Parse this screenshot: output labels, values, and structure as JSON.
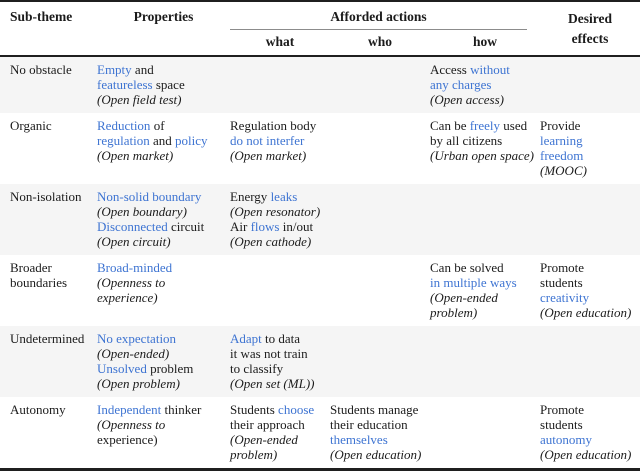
{
  "table": {
    "header": {
      "col_subtheme": "Sub-theme",
      "col_properties": "Properties",
      "group_afforded": "Afforded actions",
      "col_what": "what",
      "col_who": "who",
      "col_how": "how",
      "col_effects": "Desired effects"
    },
    "colors": {
      "link_blue": "#3E74D2",
      "row_alt_bg": "#F5F5F5",
      "rule_dark": "#1F1F1F",
      "rule_gray": "#8C8C8C"
    },
    "rows": [
      {
        "shaded": true,
        "subtheme": [
          [
            {
              "t": "No obstacle"
            }
          ]
        ],
        "properties": [
          [
            {
              "t": "Empty",
              "s": "blue"
            },
            {
              "t": " and"
            }
          ],
          [
            {
              "t": "featureless",
              "s": "blue"
            },
            {
              "t": " space"
            }
          ],
          [
            {
              "t": "(Open field test)",
              "s": "italic"
            }
          ]
        ],
        "what": [],
        "who": [],
        "how": [
          [
            {
              "t": "Access "
            },
            {
              "t": "without",
              "s": "blue"
            }
          ],
          [
            {
              "t": "any charges",
              "s": "blue"
            }
          ],
          [
            {
              "t": "(Open access)",
              "s": "italic"
            }
          ]
        ],
        "effects": []
      },
      {
        "shaded": false,
        "subtheme": [
          [
            {
              "t": "Organic"
            }
          ]
        ],
        "properties": [
          [
            {
              "t": "Reduction",
              "s": "blue"
            },
            {
              "t": " of"
            }
          ],
          [
            {
              "t": "regulation",
              "s": "blue"
            },
            {
              "t": " and "
            },
            {
              "t": "policy",
              "s": "blue"
            }
          ],
          [
            {
              "t": "(Open market)",
              "s": "italic"
            }
          ]
        ],
        "what": [
          [
            {
              "t": "Regulation body"
            }
          ],
          [
            {
              "t": "do not interfer",
              "s": "blue"
            }
          ],
          [
            {
              "t": "(Open market)",
              "s": "italic"
            }
          ]
        ],
        "who": [],
        "how": [
          [
            {
              "t": "Can be "
            },
            {
              "t": "freely",
              "s": "blue"
            },
            {
              "t": " used"
            }
          ],
          [
            {
              "t": "by all citizens"
            }
          ],
          [
            {
              "t": "(Urban open space)",
              "s": "italic"
            }
          ]
        ],
        "effects": [
          [
            {
              "t": "Provide"
            }
          ],
          [
            {
              "t": "learning",
              "s": "blue"
            }
          ],
          [
            {
              "t": "freedom",
              "s": "blue"
            }
          ],
          [
            {
              "t": "(MOOC)",
              "s": "italic"
            }
          ]
        ]
      },
      {
        "shaded": true,
        "subtheme": [
          [
            {
              "t": "Non-isolation"
            }
          ]
        ],
        "properties": [
          [
            {
              "t": "Non-solid boundary",
              "s": "blue"
            }
          ],
          [
            {
              "t": "(Open boundary)",
              "s": "italic"
            }
          ],
          [
            {
              "t": "Disconnected",
              "s": "blue"
            },
            {
              "t": " circuit"
            }
          ],
          [
            {
              "t": "(Open circuit)",
              "s": "italic"
            }
          ]
        ],
        "what": [
          [
            {
              "t": "Energy "
            },
            {
              "t": "leaks",
              "s": "blue"
            }
          ],
          [
            {
              "t": "(Open resonator)",
              "s": "italic"
            }
          ],
          [
            {
              "t": "Air "
            },
            {
              "t": "flows",
              "s": "blue"
            },
            {
              "t": " in/out"
            }
          ],
          [
            {
              "t": "(Open cathode)",
              "s": "italic"
            }
          ]
        ],
        "who": [],
        "how": [],
        "effects": []
      },
      {
        "shaded": false,
        "subtheme": [
          [
            {
              "t": "Broader"
            }
          ],
          [
            {
              "t": "boundaries"
            }
          ]
        ],
        "properties": [
          [
            {
              "t": "Broad-minded",
              "s": "blue"
            }
          ],
          [
            {
              "t": "(Openness to",
              "s": "italic"
            }
          ],
          [
            {
              "t": "experience)",
              "s": "italic"
            }
          ]
        ],
        "what": [],
        "who": [],
        "how": [
          [
            {
              "t": "Can be solved"
            }
          ],
          [
            {
              "t": "in multiple ways",
              "s": "blue"
            }
          ],
          [
            {
              "t": "(Open-ended",
              "s": "italic"
            }
          ],
          [
            {
              "t": "problem)",
              "s": "italic"
            }
          ]
        ],
        "effects": [
          [
            {
              "t": "Promote"
            }
          ],
          [
            {
              "t": "students"
            }
          ],
          [
            {
              "t": "creativity",
              "s": "blue"
            }
          ],
          [
            {
              "t": "(Open education)",
              "s": "italic"
            }
          ]
        ]
      },
      {
        "shaded": true,
        "subtheme": [
          [
            {
              "t": "Undetermined"
            }
          ]
        ],
        "properties": [
          [
            {
              "t": "No expectation",
              "s": "blue"
            }
          ],
          [
            {
              "t": "(Open-ended)",
              "s": "italic"
            }
          ],
          [
            {
              "t": "Unsolved",
              "s": "blue"
            },
            {
              "t": " problem"
            }
          ],
          [
            {
              "t": "(Open problem)",
              "s": "italic"
            }
          ]
        ],
        "what": [
          [
            {
              "t": "Adapt",
              "s": "blue"
            },
            {
              "t": " to data"
            }
          ],
          [
            {
              "t": "it was not train"
            }
          ],
          [
            {
              "t": "to classify"
            }
          ],
          [
            {
              "t": "(Open set (ML))",
              "s": "italic"
            }
          ]
        ],
        "who": [],
        "how": [],
        "effects": []
      },
      {
        "shaded": false,
        "subtheme": [
          [
            {
              "t": "Autonomy"
            }
          ]
        ],
        "properties": [
          [
            {
              "t": "Independent",
              "s": "blue"
            },
            {
              "t": " thinker"
            }
          ],
          [
            {
              "t": "(Openness to",
              "s": "italic"
            }
          ],
          [
            {
              "t": "experience)"
            }
          ]
        ],
        "what": [
          [
            {
              "t": "Students "
            },
            {
              "t": "choose",
              "s": "blue"
            }
          ],
          [
            {
              "t": "their approach"
            }
          ],
          [
            {
              "t": "(Open-ended",
              "s": "italic"
            }
          ],
          [
            {
              "t": "problem)",
              "s": "italic"
            }
          ]
        ],
        "who": [
          [
            {
              "t": "Students manage"
            }
          ],
          [
            {
              "t": "their education"
            }
          ],
          [
            {
              "t": "themselves",
              "s": "blue"
            }
          ],
          [
            {
              "t": "(Open education)",
              "s": "italic"
            }
          ]
        ],
        "how": [],
        "effects": [
          [
            {
              "t": "Promote"
            }
          ],
          [
            {
              "t": "students"
            }
          ],
          [
            {
              "t": "autonomy",
              "s": "blue"
            }
          ],
          [
            {
              "t": "(Open education)",
              "s": "italic"
            }
          ]
        ]
      }
    ]
  }
}
